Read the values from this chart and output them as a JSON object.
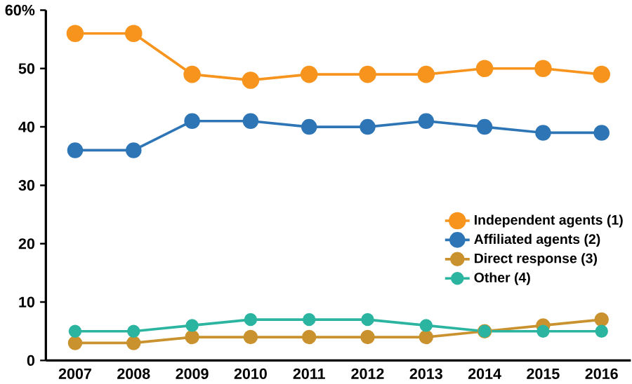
{
  "chart_data": {
    "type": "line",
    "categories": [
      "2007",
      "2008",
      "2009",
      "2010",
      "2011",
      "2012",
      "2013",
      "2014",
      "2015",
      "2016"
    ],
    "series": [
      {
        "name": "Independent agents (1)",
        "color": "#f7941d",
        "values": [
          56,
          56,
          49,
          48,
          49,
          49,
          49,
          50,
          50,
          49
        ]
      },
      {
        "name": "Affiliated agents (2)",
        "color": "#2e75b6",
        "values": [
          36,
          36,
          41,
          41,
          40,
          40,
          41,
          40,
          39,
          39
        ]
      },
      {
        "name": "Direct response (3)",
        "color": "#c9922e",
        "values": [
          3,
          3,
          4,
          4,
          4,
          4,
          4,
          5,
          6,
          7
        ]
      },
      {
        "name": "Other (4)",
        "color": "#2bb5a0",
        "values": [
          5,
          5,
          6,
          7,
          7,
          7,
          6,
          5,
          5,
          5
        ]
      }
    ],
    "ylim": [
      0,
      60
    ],
    "yticks": [
      0,
      10,
      20,
      30,
      40,
      50,
      {
        "value": 60,
        "label": "60%"
      }
    ],
    "marker": "circle",
    "line_style": "solid",
    "grid": false,
    "legend": "right"
  }
}
